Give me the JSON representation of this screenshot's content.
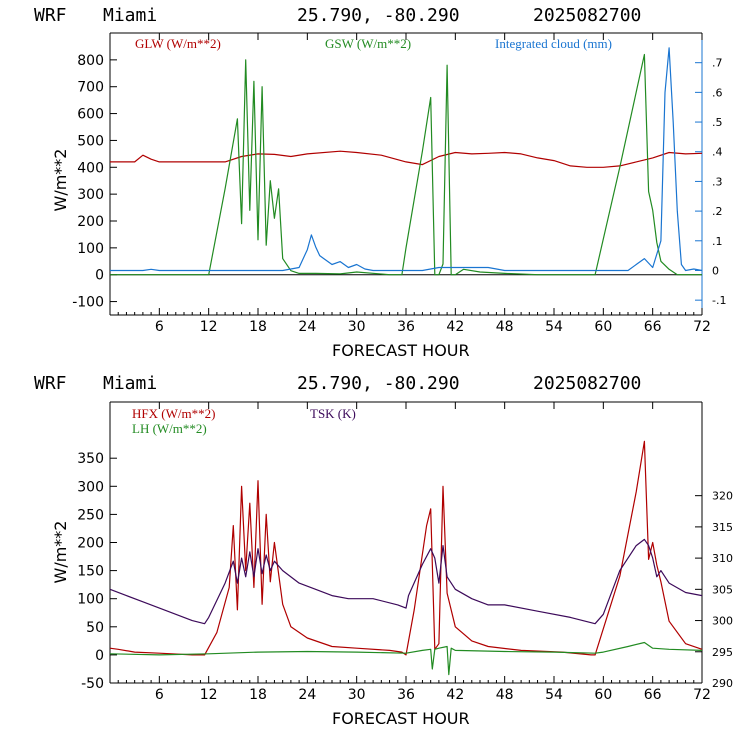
{
  "chart_data": [
    {
      "type": "line",
      "header": {
        "model": "WRF",
        "location": "Miami",
        "coords": "25.790, -80.290",
        "init": "2025082700"
      },
      "xlabel": "FORECAST HOUR",
      "ylabel": "W/m**2",
      "xlim": [
        0,
        72
      ],
      "xticks": [
        6,
        12,
        18,
        24,
        30,
        36,
        42,
        48,
        54,
        60,
        66,
        72
      ],
      "ylim": [
        -150,
        900
      ],
      "yticks": [
        -100,
        0,
        100,
        200,
        300,
        400,
        500,
        600,
        700,
        800
      ],
      "y2lim": [
        -0.15,
        0.8
      ],
      "y2ticks": [
        -0.1,
        0,
        0.1,
        0.2,
        0.3,
        0.4,
        0.5,
        0.6,
        0.7
      ],
      "y2ticklabels": [
        "-.1",
        "0",
        ".1",
        ".2",
        ".3",
        ".4",
        ".5",
        ".6",
        ".7"
      ],
      "series": [
        {
          "name": "GLW (W/m**2)",
          "color": "#b00000",
          "axis": "left",
          "x": [
            0,
            3,
            4,
            5,
            6,
            10,
            12,
            14,
            16,
            18,
            20,
            22,
            24,
            28,
            30,
            33,
            36,
            38,
            40,
            42,
            44,
            46,
            48,
            50,
            52,
            54,
            56,
            58,
            60,
            62,
            64,
            66,
            68,
            70,
            72
          ],
          "y": [
            420,
            420,
            445,
            430,
            420,
            420,
            420,
            420,
            440,
            450,
            448,
            440,
            450,
            460,
            455,
            445,
            420,
            410,
            440,
            455,
            450,
            452,
            455,
            450,
            435,
            425,
            405,
            400,
            400,
            405,
            420,
            435,
            455,
            450,
            452
          ]
        },
        {
          "name": "GSW (W/m**2)",
          "color": "#228b22",
          "axis": "left",
          "x": [
            0,
            11.5,
            12,
            14,
            15.5,
            16,
            16.5,
            17,
            17.5,
            18,
            18.5,
            19,
            19.5,
            20,
            20.5,
            21,
            22,
            23,
            25,
            28,
            30,
            34,
            35.5,
            36,
            38,
            39,
            39.5,
            40,
            40.5,
            41,
            41.5,
            42,
            43,
            45,
            48,
            52,
            58.5,
            59,
            62,
            65,
            65.5,
            66,
            66.5,
            67,
            68,
            69,
            72
          ],
          "y": [
            0,
            0,
            0,
            320,
            580,
            190,
            800,
            240,
            720,
            130,
            700,
            110,
            350,
            210,
            320,
            60,
            15,
            5,
            5,
            3,
            10,
            0,
            0,
            100,
            460,
            660,
            0,
            0,
            40,
            780,
            0,
            0,
            20,
            10,
            5,
            0,
            0,
            0,
            400,
            820,
            310,
            240,
            120,
            50,
            20,
            0,
            0
          ]
        },
        {
          "name": "Integrated cloud (mm)",
          "color": "#1a75d1",
          "axis": "right",
          "x": [
            0,
            4,
            5,
            6,
            20,
            21,
            23,
            24,
            24.5,
            25,
            25.5,
            26,
            27,
            28,
            29,
            30,
            31,
            32,
            35,
            38,
            40,
            46,
            48,
            56,
            63,
            65,
            66,
            67,
            67.5,
            68,
            68.5,
            69,
            69.5,
            70,
            71,
            72
          ],
          "y": [
            0,
            0,
            0.004,
            0,
            0,
            0,
            0.01,
            0.07,
            0.12,
            0.08,
            0.05,
            0.04,
            0.02,
            0.03,
            0.01,
            0.02,
            0.005,
            0,
            0,
            0,
            0.01,
            0.01,
            0,
            0,
            0,
            0.04,
            0.01,
            0.1,
            0.6,
            0.75,
            0.5,
            0.2,
            0.02,
            0,
            0.005,
            0
          ]
        }
      ]
    },
    {
      "type": "line",
      "header": {
        "model": "WRF",
        "location": "Miami",
        "coords": "25.790, -80.290",
        "init": "2025082700"
      },
      "xlabel": "FORECAST HOUR",
      "ylabel": "W/m**2",
      "xlim": [
        0,
        72
      ],
      "xticks": [
        6,
        12,
        18,
        24,
        30,
        36,
        42,
        48,
        54,
        60,
        66,
        72
      ],
      "ylim": [
        -50,
        450
      ],
      "yticks": [
        -50,
        0,
        50,
        100,
        150,
        200,
        250,
        300,
        350
      ],
      "y2lim": [
        290,
        335
      ],
      "y2ticks": [
        290,
        295,
        300,
        305,
        310,
        315,
        320
      ],
      "series": [
        {
          "name": "HFX (W/m**2)",
          "color": "#b00000",
          "axis": "left",
          "x": [
            0,
            1,
            3,
            6,
            10,
            11.5,
            13,
            14.5,
            15,
            15.5,
            16,
            16.5,
            17,
            17.5,
            18,
            18.5,
            19,
            19.5,
            20,
            21,
            22,
            24,
            27,
            30,
            34,
            35.5,
            36,
            37,
            38.5,
            39,
            39.5,
            40,
            40.5,
            41,
            42,
            44,
            46,
            50,
            55,
            58.5,
            59,
            62,
            64,
            65,
            65.5,
            66,
            66.5,
            67,
            68,
            70,
            72
          ],
          "y": [
            12,
            10,
            5,
            3,
            0,
            0,
            40,
            120,
            230,
            80,
            300,
            150,
            270,
            120,
            310,
            90,
            250,
            130,
            200,
            90,
            50,
            30,
            15,
            12,
            8,
            5,
            0,
            80,
            230,
            260,
            10,
            20,
            300,
            110,
            50,
            25,
            15,
            8,
            5,
            0,
            0,
            140,
            290,
            380,
            170,
            200,
            160,
            130,
            60,
            20,
            10
          ]
        },
        {
          "name": "LH  (W/m**2)",
          "color": "#228b22",
          "axis": "left",
          "x": [
            0,
            6,
            12,
            18,
            24,
            30,
            36,
            38,
            39,
            39.2,
            39.5,
            40,
            41,
            41.2,
            41.5,
            42,
            48,
            54,
            59,
            60,
            63,
            65,
            66,
            68,
            72
          ],
          "y": [
            2,
            0,
            2,
            5,
            6,
            5,
            3,
            8,
            10,
            -25,
            10,
            12,
            15,
            -35,
            12,
            8,
            6,
            5,
            3,
            5,
            15,
            22,
            12,
            10,
            8
          ]
        },
        {
          "name": "TSK (K)",
          "color": "#3c0a5a",
          "axis": "right",
          "x": [
            0,
            2,
            4,
            7,
            10,
            11.5,
            12,
            14,
            15,
            15.5,
            16,
            16.5,
            17,
            17.5,
            18,
            18.5,
            19,
            19.5,
            20,
            21,
            23,
            25,
            27,
            29,
            32,
            35,
            36,
            36.3,
            38,
            39,
            39.5,
            40,
            40.5,
            41,
            42,
            44,
            46,
            48,
            52,
            56,
            59,
            60,
            62,
            64,
            65,
            65.5,
            66,
            66.5,
            67,
            68,
            70,
            72
          ],
          "y": [
            305,
            304,
            303,
            301.5,
            300,
            299.5,
            300.5,
            306,
            309.5,
            306,
            310,
            307,
            311,
            307,
            311.5,
            307.5,
            310.5,
            308,
            309.5,
            308,
            306,
            305,
            304,
            303.5,
            303.5,
            302.5,
            302,
            304,
            309,
            311.5,
            310,
            306,
            312,
            307,
            305,
            303.5,
            302.5,
            302.5,
            301.5,
            300.5,
            299.5,
            301,
            308,
            312,
            313,
            312,
            310,
            307,
            308,
            306,
            304.5,
            304
          ]
        }
      ]
    }
  ]
}
